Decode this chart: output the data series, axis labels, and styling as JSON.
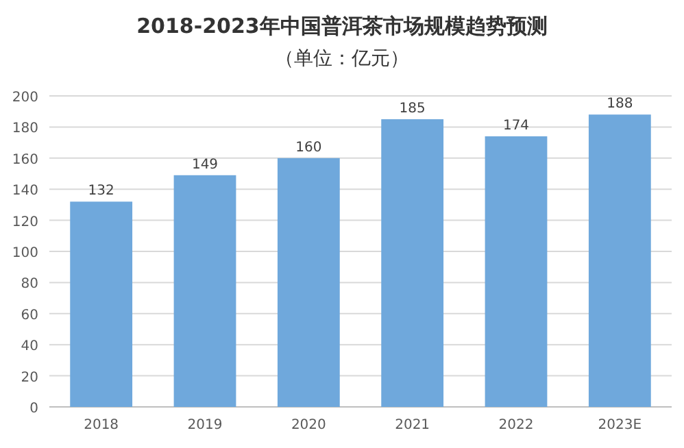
{
  "chart_data": {
    "type": "bar",
    "title": "2018-2023年中国普洱茶市场规模趋势预测",
    "subtitle": "（单位：亿元）",
    "categories": [
      "2018",
      "2019",
      "2020",
      "2021",
      "2022",
      "2023E"
    ],
    "values": [
      132,
      149,
      160,
      185,
      174,
      188
    ],
    "color": "#6fa8dc",
    "ylim": [
      0,
      200
    ],
    "yticks": [
      0,
      20,
      40,
      60,
      80,
      100,
      120,
      140,
      160,
      180,
      200
    ],
    "grid": "y",
    "data_labels": true
  }
}
